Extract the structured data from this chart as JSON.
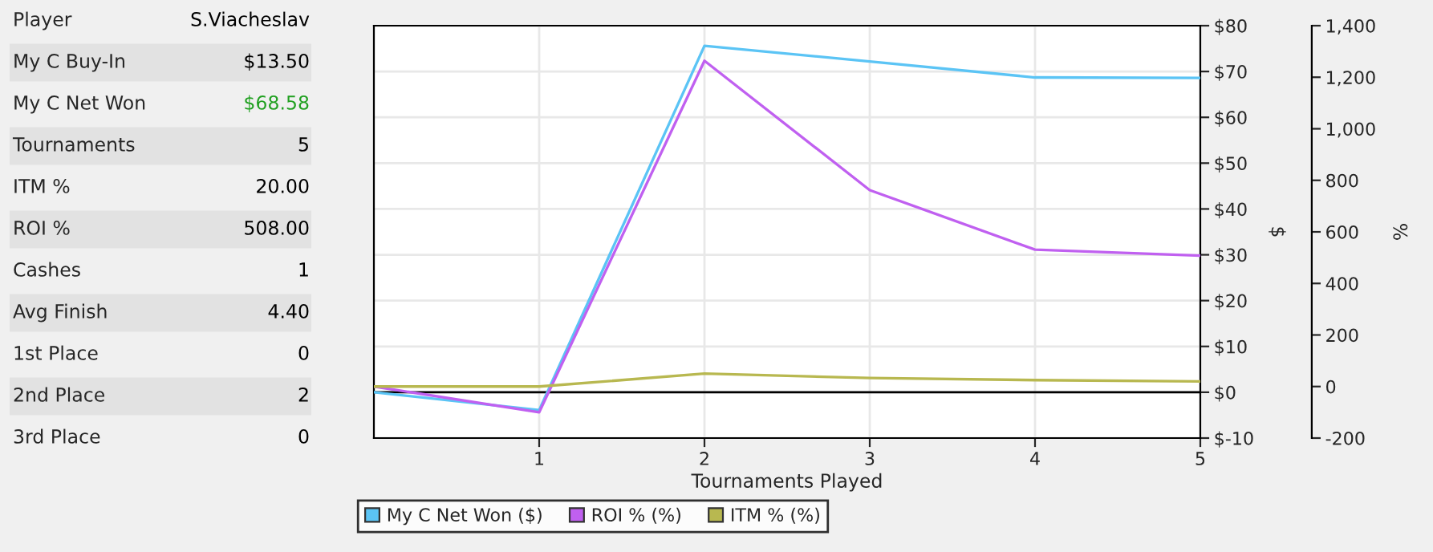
{
  "chart_data": [
    {
      "type": "other",
      "annotations": [
        "Player",
        "S.Viacheslav",
        "My C Buy-In",
        "$13.50",
        "My C Net Won",
        "$68.58",
        "Tournaments",
        "5",
        "ITM %",
        "20.00",
        "ROI %",
        "508.00",
        "Cashes",
        "1",
        "Avg Finish",
        "4.40",
        "1st Place",
        "0",
        "2nd Place",
        "2",
        "3rd Place",
        "0"
      ]
    },
    {
      "type": "line",
      "xlabel": "Tournaments Played",
      "ylabel": "$",
      "y2label": "%",
      "x": [
        0,
        1,
        2,
        3,
        4,
        5
      ],
      "series": [
        {
          "name": "My C Net Won ($)",
          "color": "#5bc4f5",
          "values": [
            0,
            -3.9,
            75.6,
            72.2,
            68.7,
            68.6
          ]
        },
        {
          "name": "ROI % (%)",
          "color": "#c060f0",
          "values": [
            0,
            -100,
            1264,
            762,
            531,
            508
          ],
          "axis": "y2"
        },
        {
          "name": "ITM % (%)",
          "color": "#b8b850",
          "values": [
            0,
            0,
            50,
            33,
            25,
            20
          ],
          "axis": "y2"
        }
      ],
      "xlim": [
        0,
        5
      ],
      "xticks": [
        1,
        2,
        3,
        4,
        5
      ],
      "ylim": [
        -10,
        80
      ],
      "yticks": [
        {
          "value": -10,
          "label": "$-10"
        },
        {
          "value": 0,
          "label": "$0"
        },
        {
          "value": 10,
          "label": "$10"
        },
        {
          "value": 20,
          "label": "$20"
        },
        {
          "value": 30,
          "label": "$30"
        },
        {
          "value": 40,
          "label": "$40"
        },
        {
          "value": 50,
          "label": "$50"
        },
        {
          "value": 60,
          "label": "$60"
        },
        {
          "value": 70,
          "label": "$70"
        },
        {
          "value": 80,
          "label": "$80"
        }
      ],
      "y2lim": [
        -200,
        1400
      ],
      "y2ticks": [
        -200,
        0,
        200,
        400,
        600,
        800,
        {
          "value": 1000,
          "label": "1,000"
        },
        {
          "value": 1200,
          "label": "1,200"
        },
        {
          "value": 1400,
          "label": "1,400"
        }
      ],
      "grid": true,
      "legend": "bottom",
      "ref_lines": [
        {
          "axis": "y",
          "value": 0,
          "color": "#000000"
        }
      ]
    }
  ]
}
